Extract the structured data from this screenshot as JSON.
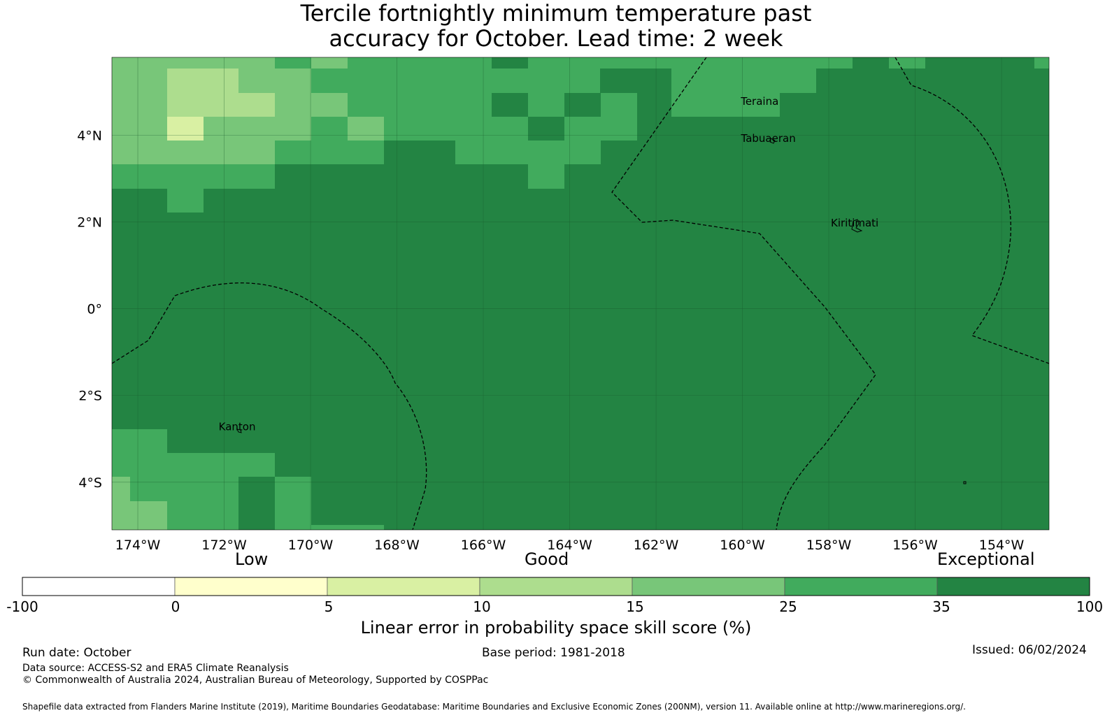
{
  "title": {
    "line1": "Tercile fortnightly minimum temperature past",
    "line2": "accuracy for October. Lead time: 2 week"
  },
  "map": {
    "lon_range": [
      -174.6,
      -152.9
    ],
    "lat_range": [
      -5.1,
      5.8
    ],
    "lon_ticks": [
      {
        "value": -174,
        "label": "174°W"
      },
      {
        "value": -172,
        "label": "172°W"
      },
      {
        "value": -170,
        "label": "170°W"
      },
      {
        "value": -168,
        "label": "168°W"
      },
      {
        "value": -166,
        "label": "166°W"
      },
      {
        "value": -164,
        "label": "164°W"
      },
      {
        "value": -162,
        "label": "162°W"
      },
      {
        "value": -160,
        "label": "160°W"
      },
      {
        "value": -158,
        "label": "158°W"
      },
      {
        "value": -156,
        "label": "156°W"
      },
      {
        "value": -154,
        "label": "154°W"
      }
    ],
    "lat_ticks": [
      {
        "value": 4,
        "label": "4°N"
      },
      {
        "value": 2,
        "label": "2°N"
      },
      {
        "value": 0,
        "label": "0°"
      },
      {
        "value": -2,
        "label": "2°S"
      },
      {
        "value": -4,
        "label": "4°S"
      }
    ],
    "places": [
      {
        "name": "Teraina",
        "lon": -159.6,
        "lat": 4.7
      },
      {
        "name": "Tabuaeran",
        "lon": -159.4,
        "lat": 3.85
      },
      {
        "name": "Kiritimati",
        "lon": -157.4,
        "lat": 1.9
      },
      {
        "name": "Kanton",
        "lon": -171.7,
        "lat": -2.8
      }
    ]
  },
  "colorbar": {
    "categories": [
      {
        "label": "Low"
      },
      {
        "label": "Good"
      },
      {
        "label": "Exceptional"
      }
    ],
    "ticks": [
      "-100",
      "0",
      "5",
      "10",
      "15",
      "25",
      "35",
      "100"
    ],
    "colors": [
      "#ffffff",
      "#ffffcc",
      "#d9f0a3",
      "#addd8e",
      "#78c679",
      "#41ab5d",
      "#238443"
    ],
    "label": "Linear error in probability space skill score (%)"
  },
  "footer": {
    "run_date": "Run date: October",
    "base_period": "Base period: 1981-2018",
    "issued": "Issued: 06/02/2024",
    "data_source": "Data source: ACCESS-S2 and ERA5 Climate Reanalysis",
    "copyright": "© Commonwealth of Australia 2024, Australian Bureau of Meteorology, Supported by COSPPac",
    "shapefile": "Shapefile data extracted from Flanders Marine Institute (2019), Maritime Boundaries Geodatabase: Maritime Boundaries and Exclusive Economic Zones (200NM), version 11. Available online at http://www.marineregions.org/."
  }
}
